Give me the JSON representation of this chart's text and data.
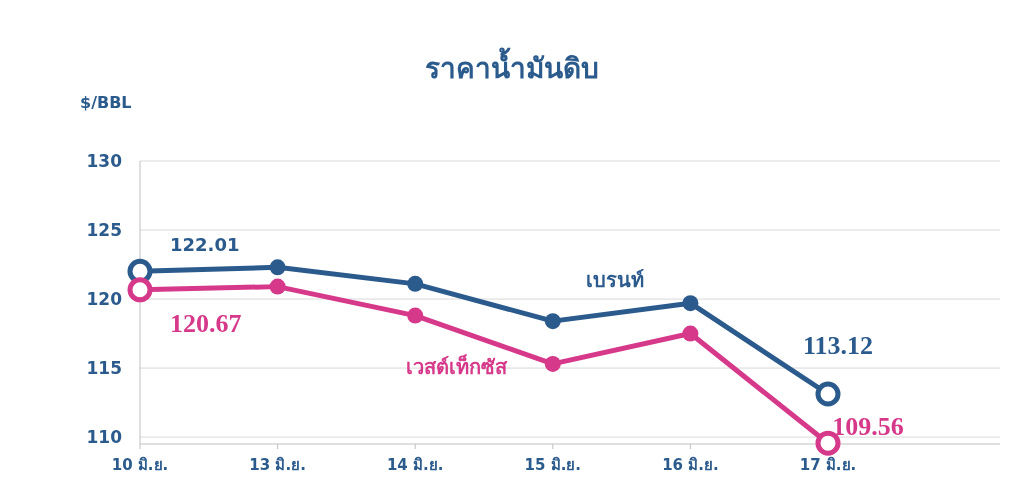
{
  "chart_data": {
    "type": "line",
    "title": "ราคาน้ำมันดิบ",
    "ylabel": "$/BBL",
    "categories": [
      "10 มิ.ย.",
      "13 มิ.ย.",
      "14 มิ.ย.",
      "15 มิ.ย.",
      "16 มิ.ย.",
      "17 มิ.ย."
    ],
    "series": [
      {
        "name": "เบรนท์",
        "color": "#2b5a8c",
        "values": [
          122.01,
          122.3,
          121.1,
          118.4,
          119.7,
          113.12
        ],
        "value_labels": [
          "122.01",
          null,
          null,
          null,
          null,
          "113.12"
        ]
      },
      {
        "name": "เวสต์เท็กซัส",
        "color": "#d6398a",
        "values": [
          120.67,
          120.9,
          118.8,
          115.3,
          117.5,
          109.56
        ],
        "value_labels": [
          "120.67",
          null,
          null,
          null,
          null,
          "109.56"
        ]
      }
    ],
    "ylim": [
      109.5,
      130
    ],
    "yticks": [
      110,
      115,
      120,
      125,
      130
    ],
    "grid": "y",
    "marker": "circle",
    "legend": false
  }
}
